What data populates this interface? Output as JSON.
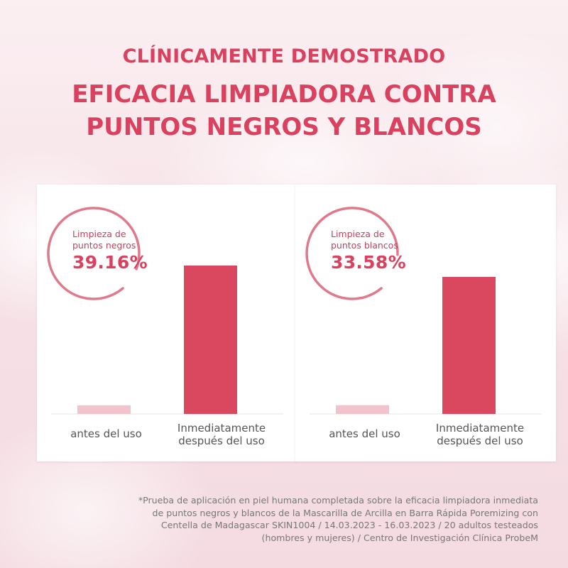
{
  "header": {
    "line1": "CLÍNICAMENTE DEMOSTRADO",
    "line2": "EFICACIA LIMPIADORA CONTRA",
    "line3": "PUNTOS NEGROS Y BLANCOS"
  },
  "colors": {
    "accent": "#d9415e",
    "bar_after": "#d9485f",
    "bar_before": "#f1c3cc",
    "ring": "#df7a8c"
  },
  "chart_data": [
    {
      "type": "bar",
      "label_line1": "Limpieza de",
      "label_line2": "puntos negros",
      "highlight": "39.16%",
      "categories": [
        "antes del uso",
        "Inmediatamente después del uso"
      ],
      "category_lines": [
        [
          "antes del uso"
        ],
        [
          "Inmediatamente",
          "después del uso"
        ]
      ],
      "values": [
        5.8,
        100
      ],
      "ylim": [
        0,
        100
      ],
      "grid": false
    },
    {
      "type": "bar",
      "label_line1": "Limpieza de",
      "label_line2": "puntos blancos",
      "highlight": "33.58%",
      "categories": [
        "antes del uso",
        "Inmediatamente después del uso"
      ],
      "category_lines": [
        [
          "antes del uso"
        ],
        [
          "Inmediatamente",
          "después del uso"
        ]
      ],
      "values": [
        6.4,
        100
      ],
      "ylim": [
        0,
        100
      ],
      "grid": false
    }
  ],
  "footnote": {
    "line1": "*Prueba de aplicación en piel humana completada sobre la eficacia limpiadora inmediata",
    "line2": "de puntos negros y blancos de la Mascarilla de Arcilla en Barra Rápida Poremizing con",
    "line3": "Centella de Madagascar SKIN1004 / 14.03.2023 - 16.03.2023 / 20 adultos testeados",
    "line4": "(hombres y mujeres) / Centro de Investigación Clínica ProbeM"
  }
}
